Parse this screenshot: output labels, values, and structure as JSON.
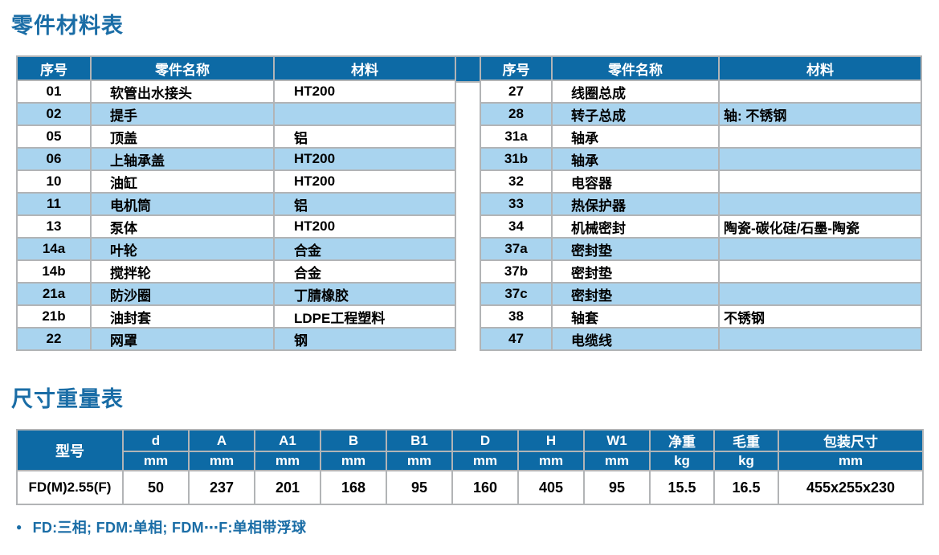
{
  "colors": {
    "header_blue": "#0d6aa5",
    "row_blue": "#a9d4ef",
    "border_gray": "#b2b4b6",
    "title_blue": "#1a6da6"
  },
  "parts_section": {
    "title": "零件材料表",
    "columns": [
      "序号",
      "零件名称",
      "材料"
    ],
    "left_rows": [
      {
        "no": "01",
        "name": "软管出水接头",
        "material": "HT200"
      },
      {
        "no": "02",
        "name": "提手",
        "material": ""
      },
      {
        "no": "05",
        "name": "顶盖",
        "material": "铝"
      },
      {
        "no": "06",
        "name": "上轴承盖",
        "material": "HT200"
      },
      {
        "no": "10",
        "name": "油缸",
        "material": "HT200"
      },
      {
        "no": "11",
        "name": "电机筒",
        "material": "铝"
      },
      {
        "no": "13",
        "name": "泵体",
        "material": "HT200"
      },
      {
        "no": "14a",
        "name": "叶轮",
        "material": "合金"
      },
      {
        "no": "14b",
        "name": "搅拌轮",
        "material": "合金"
      },
      {
        "no": "21a",
        "name": "防沙圈",
        "material": "丁腈橡胶"
      },
      {
        "no": "21b",
        "name": "油封套",
        "material": "LDPE工程塑料"
      },
      {
        "no": "22",
        "name": "网罩",
        "material": "钢"
      }
    ],
    "right_rows": [
      {
        "no": "27",
        "name": "线圈总成",
        "material": ""
      },
      {
        "no": "28",
        "name": "转子总成",
        "material": "轴: 不锈钢"
      },
      {
        "no": "31a",
        "name": "轴承",
        "material": ""
      },
      {
        "no": "31b",
        "name": "轴承",
        "material": ""
      },
      {
        "no": "32",
        "name": "电容器",
        "material": ""
      },
      {
        "no": "33",
        "name": "热保护器",
        "material": ""
      },
      {
        "no": "34",
        "name": "机械密封",
        "material": "陶瓷-碳化硅/石墨-陶瓷"
      },
      {
        "no": "37a",
        "name": "密封垫",
        "material": ""
      },
      {
        "no": "37b",
        "name": "密封垫",
        "material": ""
      },
      {
        "no": "37c",
        "name": "密封垫",
        "material": ""
      },
      {
        "no": "38",
        "name": "轴套",
        "material": "不锈钢"
      },
      {
        "no": "47",
        "name": "电缆线",
        "material": ""
      }
    ]
  },
  "dims_section": {
    "title": "尺寸重量表",
    "model_header": "型号",
    "columns": [
      {
        "label": "d",
        "unit": "mm"
      },
      {
        "label": "A",
        "unit": "mm"
      },
      {
        "label": "A1",
        "unit": "mm"
      },
      {
        "label": "B",
        "unit": "mm"
      },
      {
        "label": "B1",
        "unit": "mm"
      },
      {
        "label": "D",
        "unit": "mm"
      },
      {
        "label": "H",
        "unit": "mm"
      },
      {
        "label": "W1",
        "unit": "mm"
      },
      {
        "label": "净重",
        "unit": "kg"
      },
      {
        "label": "毛重",
        "unit": "kg"
      },
      {
        "label": "包装尺寸",
        "unit": "mm"
      }
    ],
    "rows": [
      {
        "model": "FD(M)2.55(F)",
        "values": [
          "50",
          "237",
          "201",
          "168",
          "95",
          "160",
          "405",
          "95",
          "15.5",
          "16.5",
          "455x255x230"
        ]
      }
    ],
    "note_bullet": "●",
    "note": "FD:三相; FDM:单相; FDM⋯F:单相带浮球"
  }
}
